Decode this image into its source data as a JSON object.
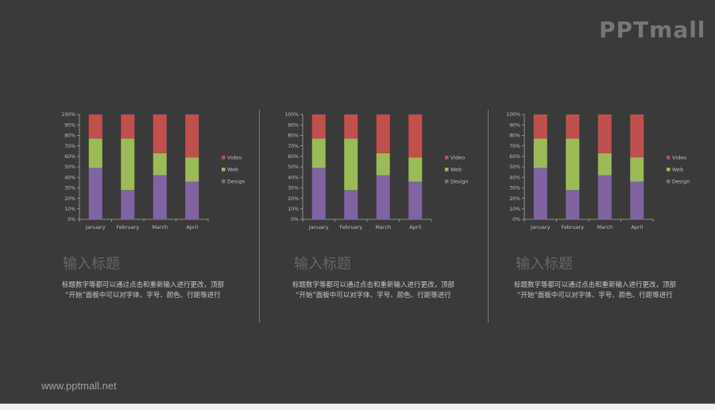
{
  "logo": {
    "text": "PPTmall"
  },
  "footer": {
    "url": "www.pptmall.net"
  },
  "panels": [
    {
      "heading": "输入标题",
      "desc_line1": "标题数字等都可以通过点击和重新输入进行更改，顶部",
      "desc_line2": "“开始”面板中可以对字体、字号、颜色、行距等进行"
    },
    {
      "heading": "输入标题",
      "desc_line1": "标题数字等都可以通过点击和重新输入进行更改，顶部",
      "desc_line2": "“开始”面板中可以对字体、字号、颜色、行距等进行"
    },
    {
      "heading": "输入标题",
      "desc_line1": "标题数字等都可以通过点击和重新输入进行更改，顶部",
      "desc_line2": "“开始”面板中可以对字体、字号、颜色、行距等进行"
    }
  ],
  "colors": {
    "Design": "#8064a2",
    "Web": "#9bbb59",
    "Video": "#c0504d",
    "axis": "#a6a6a6",
    "tick_text": "#bfbfbf"
  },
  "chart_data": [
    {
      "type": "bar",
      "stacked": "percent",
      "categories": [
        "January",
        "February",
        "March",
        "April"
      ],
      "series": [
        {
          "name": "Design",
          "values": [
            49,
            28,
            42,
            36
          ]
        },
        {
          "name": "Web",
          "values": [
            28,
            49,
            21,
            23
          ]
        },
        {
          "name": "Video",
          "values": [
            23,
            23,
            37,
            41
          ]
        }
      ],
      "yticks": [
        "0%",
        "10%",
        "20%",
        "30%",
        "40%",
        "50%",
        "60%",
        "70%",
        "80%",
        "90%",
        "100%"
      ],
      "ylim": [
        0,
        100
      ],
      "legend": "right",
      "grid": false
    },
    {
      "type": "bar",
      "stacked": "percent",
      "categories": [
        "January",
        "February",
        "March",
        "April"
      ],
      "series": [
        {
          "name": "Design",
          "values": [
            49,
            28,
            42,
            36
          ]
        },
        {
          "name": "Web",
          "values": [
            28,
            49,
            21,
            23
          ]
        },
        {
          "name": "Video",
          "values": [
            23,
            23,
            37,
            41
          ]
        }
      ],
      "yticks": [
        "0%",
        "10%",
        "20%",
        "30%",
        "40%",
        "50%",
        "60%",
        "70%",
        "80%",
        "90%",
        "100%"
      ],
      "ylim": [
        0,
        100
      ],
      "legend": "right",
      "grid": false
    },
    {
      "type": "bar",
      "stacked": "percent",
      "categories": [
        "January",
        "February",
        "March",
        "April"
      ],
      "series": [
        {
          "name": "Design",
          "values": [
            49,
            28,
            42,
            36
          ]
        },
        {
          "name": "Web",
          "values": [
            28,
            49,
            21,
            23
          ]
        },
        {
          "name": "Video",
          "values": [
            23,
            23,
            37,
            41
          ]
        }
      ],
      "yticks": [
        "0%",
        "10%",
        "20%",
        "30%",
        "40%",
        "50%",
        "60%",
        "70%",
        "80%",
        "90%",
        "100%"
      ],
      "ylim": [
        0,
        100
      ],
      "legend": "right",
      "grid": false
    }
  ]
}
